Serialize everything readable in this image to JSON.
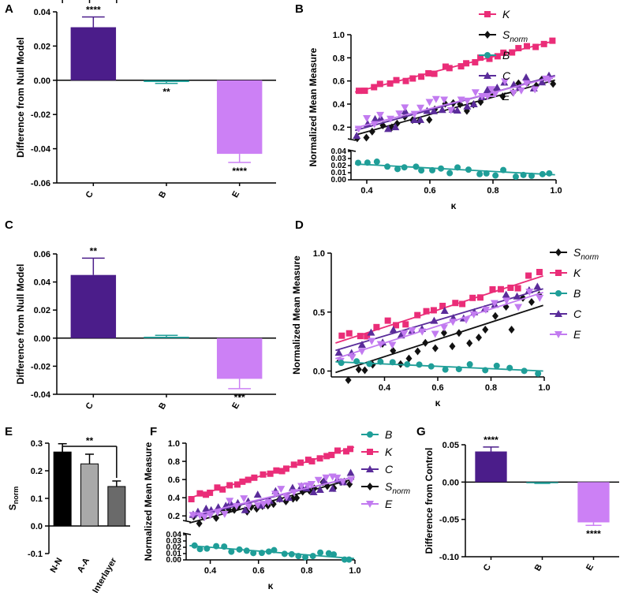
{
  "colors": {
    "K": "#ea2d78",
    "Snorm": "#111111",
    "B": "#1f9e98",
    "C": "#5a2c9a",
    "E": "#c27bf0",
    "barC": "#4b1d8a",
    "barE": "#cc80f5",
    "barB": "#1f9e98"
  },
  "chart_data": [
    {
      "id": "A",
      "panel": "A",
      "type": "bar",
      "categories": [
        "C",
        "B",
        "E"
      ],
      "values": [
        0.031,
        -0.001,
        -0.043
      ],
      "errors": [
        0.006,
        0.0008,
        0.005
      ],
      "stars": [
        "****",
        "**",
        "****"
      ],
      "ylabel": "Difference from Null Model",
      "ylim": [
        -0.06,
        0.04
      ],
      "yticks": [
        "0.04",
        "0.02",
        "0.00",
        "-0.02",
        "-0.04",
        "-0.06"
      ]
    },
    {
      "id": "B",
      "panel": "B",
      "type": "scatter",
      "xlabel": "κ",
      "ylabel": "Normalized Mean Measure",
      "xlim": [
        0.35,
        1.0
      ],
      "ylim_upper": [
        0.1,
        1.0
      ],
      "ylim_lower": [
        0,
        0.04
      ],
      "xticks": [
        "0.4",
        "0.6",
        "0.8",
        "1.0"
      ],
      "yticks_upper": [
        "1.0",
        "0.8",
        "0.6",
        "0.4",
        "0.2"
      ],
      "yticks_lower": [
        "0.04",
        "0.03",
        "0.02",
        "0.01",
        "0.00"
      ],
      "legend": [
        "K",
        "S",
        "B",
        "C",
        "E"
      ],
      "legend_sub": "norm",
      "series": [
        {
          "name": "K",
          "fit": [
            0.25,
            0.7
          ],
          "spread": 0.02,
          "n": 26,
          "marker": "square"
        },
        {
          "name": "Snorm",
          "fit": [
            -0.14,
            0.75
          ],
          "spread": 0.06,
          "n": 26,
          "marker": "diamond"
        },
        {
          "name": "C",
          "fit": [
            -0.1,
            0.75
          ],
          "spread": 0.07,
          "n": 26,
          "marker": "triangle"
        },
        {
          "name": "E",
          "fit": [
            -0.06,
            0.7
          ],
          "spread": 0.07,
          "n": 26,
          "marker": "tridown"
        },
        {
          "name": "B",
          "fit": [
            0.031,
            -0.024
          ],
          "spread": 0.006,
          "n": 22,
          "marker": "circle"
        }
      ]
    },
    {
      "id": "C",
      "panel": "C",
      "type": "bar",
      "categories": [
        "C",
        "B",
        "E"
      ],
      "values": [
        0.045,
        0.001,
        -0.029
      ],
      "errors": [
        0.012,
        0.001,
        0.007
      ],
      "stars": [
        "**",
        "",
        "***"
      ],
      "ylabel": "Difference from Null Model",
      "ylim": [
        -0.04,
        0.06
      ],
      "yticks": [
        "0.06",
        "0.04",
        "0.02",
        "0.00",
        "-0.02",
        "-0.04"
      ]
    },
    {
      "id": "D",
      "panel": "D",
      "type": "scatter",
      "xlabel": "κ",
      "ylabel": "Normalized Mean Measure",
      "xlim": [
        0.2,
        1.0
      ],
      "ylim": [
        -0.05,
        1.0
      ],
      "xticks": [
        "0.4",
        "0.6",
        "0.8",
        "1.0"
      ],
      "yticks": [
        "1.0",
        "0.5",
        "0.0"
      ],
      "legend": [
        "S",
        "K",
        "B",
        "C",
        "E"
      ],
      "legend_sub": "norm",
      "series": [
        {
          "name": "K",
          "fit": [
            0.08,
            0.73
          ],
          "spread": 0.05,
          "n": 22,
          "marker": "square"
        },
        {
          "name": "Snorm",
          "fit": [
            -0.17,
            0.73
          ],
          "spread": 0.12,
          "n": 24,
          "marker": "diamond"
        },
        {
          "name": "C",
          "fit": [
            0.03,
            0.67
          ],
          "spread": 0.07,
          "n": 20,
          "marker": "triangle"
        },
        {
          "name": "E",
          "fit": [
            -0.05,
            0.72
          ],
          "spread": 0.07,
          "n": 20,
          "marker": "tridown"
        },
        {
          "name": "B",
          "fit": [
            0.1,
            -0.1
          ],
          "spread": 0.03,
          "n": 16,
          "marker": "circle"
        }
      ]
    },
    {
      "id": "E",
      "panel": "E",
      "type": "bar",
      "categories": [
        "N-N",
        "A-A",
        "Interlayer"
      ],
      "values": [
        0.268,
        0.225,
        0.143
      ],
      "errors": [
        0.03,
        0.035,
        0.02
      ],
      "colors": [
        "#000000",
        "#a9a9a9",
        "#6a6a6a"
      ],
      "bracket_stars": "**",
      "ylabel": "S",
      "ylabel_sub": "norm",
      "ylim": [
        -0.1,
        0.3
      ],
      "yticks": [
        "0.3",
        "0.2",
        "0.1",
        "0.0",
        "-0.1"
      ]
    },
    {
      "id": "F",
      "panel": "F",
      "type": "scatter",
      "xlabel": "κ",
      "ylabel": "Normalized Mean Measure",
      "xlim": [
        0.3,
        1.0
      ],
      "ylim_upper": [
        0.15,
        1.0
      ],
      "ylim_lower": [
        0,
        0.04
      ],
      "xticks": [
        "0.4",
        "0.6",
        "0.8",
        "1.0"
      ],
      "yticks_upper": [
        "1.0",
        "0.8",
        "0.6",
        "0.4",
        "0.2"
      ],
      "yticks_lower": [
        "0.04",
        "0.03",
        "0.02",
        "0.01",
        "0.00"
      ],
      "legend": [
        "B",
        "K",
        "C",
        "S",
        "E"
      ],
      "legend_sub": "norm",
      "series": [
        {
          "name": "K",
          "fit": [
            0.14,
            0.82
          ],
          "spread": 0.02,
          "n": 26,
          "marker": "square"
        },
        {
          "name": "Snorm",
          "fit": [
            -0.1,
            0.71
          ],
          "spread": 0.06,
          "n": 28,
          "marker": "diamond"
        },
        {
          "name": "C",
          "fit": [
            -0.02,
            0.65
          ],
          "spread": 0.07,
          "n": 26,
          "marker": "triangle"
        },
        {
          "name": "E",
          "fit": [
            0.0,
            0.63
          ],
          "spread": 0.07,
          "n": 26,
          "marker": "tridown"
        },
        {
          "name": "B",
          "fit": [
            0.032,
            -0.03
          ],
          "spread": 0.006,
          "n": 22,
          "marker": "circle"
        }
      ]
    },
    {
      "id": "G",
      "panel": "G",
      "type": "bar",
      "categories": [
        "C",
        "B",
        "E"
      ],
      "values": [
        0.041,
        -0.001,
        -0.054
      ],
      "errors": [
        0.006,
        0.0008,
        0.004
      ],
      "stars": [
        "****",
        "",
        "****"
      ],
      "ylabel": "Difference from Control",
      "ylim": [
        -0.1,
        0.05
      ],
      "yticks": [
        "0.05",
        "0.00",
        "-0.05",
        "-0.10"
      ]
    }
  ]
}
